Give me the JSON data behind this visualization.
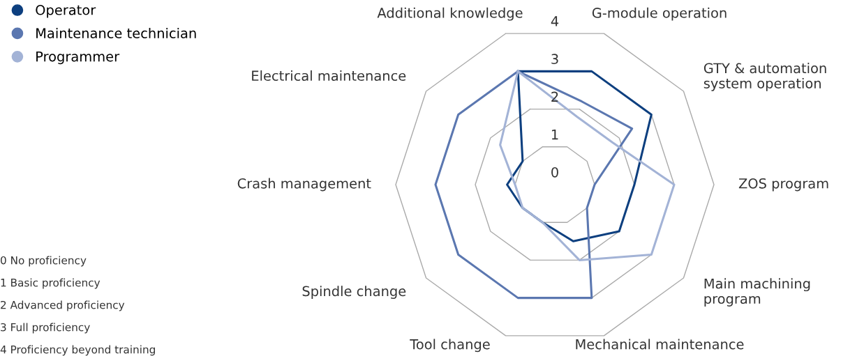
{
  "chart_data": {
    "type": "radar",
    "categories": [
      "Additional knowledge",
      "G-module operation",
      "GTY & automation\nsystem operation",
      "ZOS program",
      "Main machining\nprogram",
      "Mechanical maintenance",
      "Tool change",
      "Spindle change",
      "Crash management",
      "Electrical maintenance"
    ],
    "series": [
      {
        "name": "Operator",
        "color": "#0d3f7f",
        "values": [
          3,
          3,
          3,
          2,
          2,
          1.5,
          1,
          1,
          1.2,
          1
        ]
      },
      {
        "name": "Maintenance technician",
        "color": "#5b77b0",
        "values": [
          3,
          2.2,
          2.4,
          1,
          1,
          3,
          3,
          3,
          3,
          3
        ]
      },
      {
        "name": "Programmer",
        "color": "#a3b3d6",
        "values": [
          3,
          1.8,
          1.8,
          3,
          3,
          2,
          1,
          1,
          1,
          1.7
        ]
      }
    ],
    "ylim": [
      0,
      4
    ],
    "yticks": [
      0,
      1,
      2,
      3,
      4
    ],
    "grid": true,
    "legend": "top left",
    "annotations": [
      "0 No proficiency",
      "1 Basic proficiency",
      "2 Advanced proficiency",
      "3 Full proficiency",
      "4 Proficiency beyond training"
    ]
  }
}
